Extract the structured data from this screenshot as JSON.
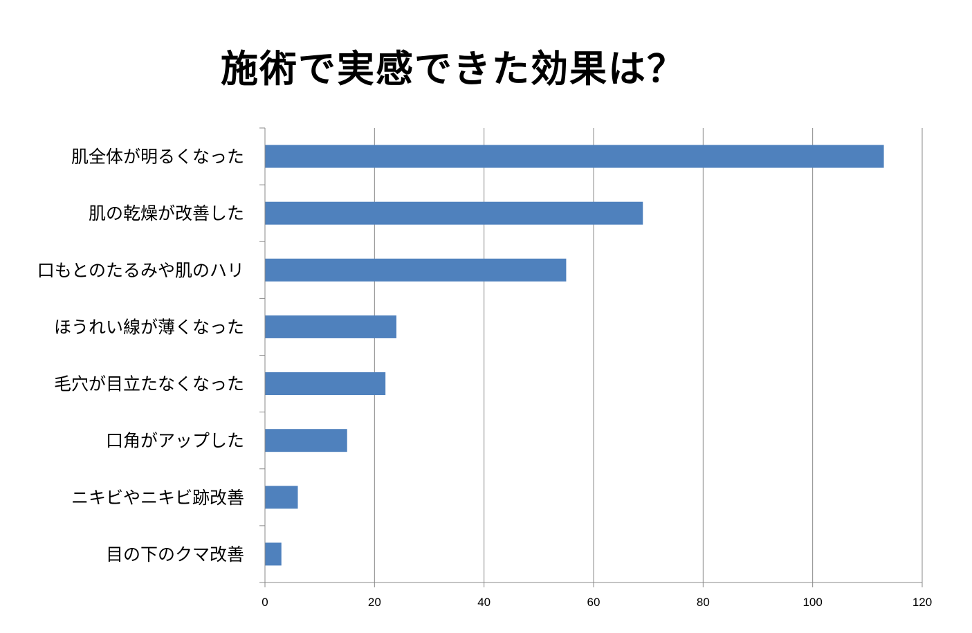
{
  "chart_data": {
    "type": "bar",
    "orientation": "horizontal",
    "title": "施術で実感できた効果は？",
    "categories": [
      "肌全体が明るくなった",
      "肌の乾燥が改善した",
      "口もとのたるみや肌のハリ",
      "ほうれい線が薄くなった",
      "毛穴が目立たなくなった",
      "口角がアップした",
      "ニキビやニキビ跡改善",
      "目の下のクマ改善"
    ],
    "values": [
      113,
      69,
      55,
      24,
      22,
      15,
      6,
      3
    ],
    "xlim": [
      0,
      120
    ],
    "xticks": [
      "0",
      "20",
      "40",
      "60",
      "80",
      "100",
      "120"
    ],
    "xlabel": "",
    "ylabel": "",
    "grid": "vertical",
    "bar_color": "#4f81bd",
    "grid_color": "#898989"
  }
}
